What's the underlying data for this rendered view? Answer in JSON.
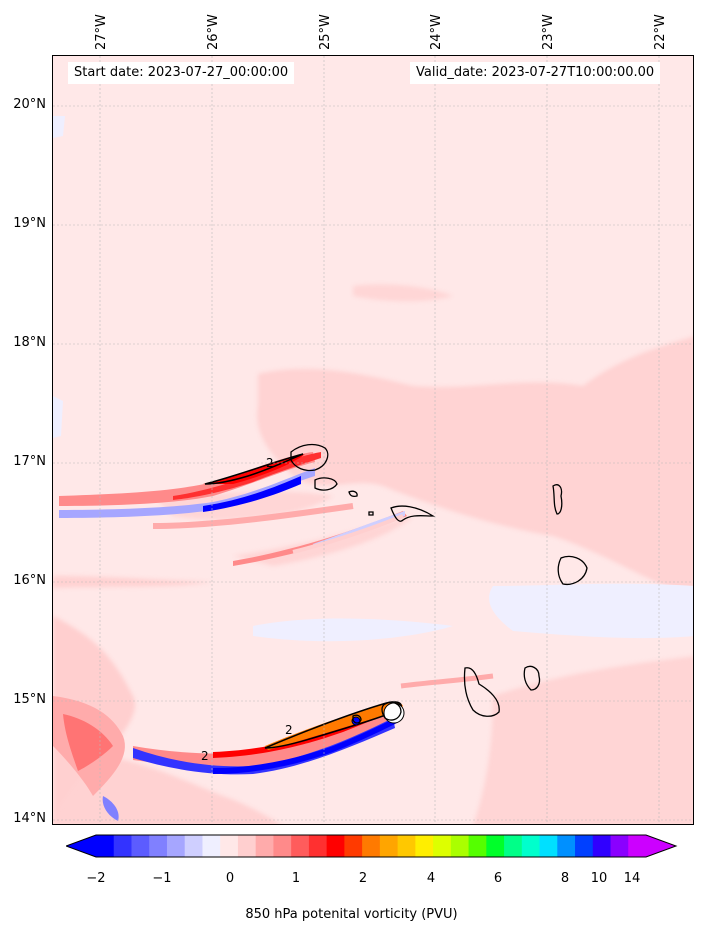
{
  "header": {
    "start_date": "Start date: 2023-07-27_00:00:00",
    "valid_date": "Valid_date: 2023-07-27T10:00:00.00"
  },
  "axes": {
    "lon_labels": [
      "27°W",
      "26°W",
      "25°W",
      "24°W",
      "23°W",
      "22°W"
    ],
    "lat_labels": [
      "20°N",
      "19°N",
      "18°N",
      "17°N",
      "16°N",
      "15°N",
      "14°N"
    ],
    "lon_values": [
      -27,
      -26,
      -25,
      -24,
      -23,
      -22
    ],
    "lat_values": [
      20,
      19,
      18,
      17,
      16,
      15,
      14
    ]
  },
  "map": {
    "projection": "lat-lon",
    "extent_lon": [
      -27.4,
      -21.7
    ],
    "extent_lat": [
      13.95,
      20.4
    ],
    "background_color": "#ffe8e8",
    "gridlines": true,
    "contour_level_label": "2",
    "contour_labels": [
      "2",
      "2",
      "2"
    ]
  },
  "colorbar": {
    "label": "850 hPa potenital vorticity (PVU)",
    "tick_labels": [
      "−2",
      "−1",
      "0",
      "1",
      "2",
      "4",
      "6",
      "8",
      "10",
      "14"
    ],
    "colors": [
      "#0000ff",
      "#3333ff",
      "#5c5cff",
      "#8080ff",
      "#a6a6ff",
      "#cfcfff",
      "#efefff",
      "#ffe8e8",
      "#ffcfcf",
      "#ffabab",
      "#ff8a8a",
      "#ff5c5c",
      "#ff3030",
      "#ff0000",
      "#ff3a00",
      "#ff7a00",
      "#ffa500",
      "#ffc800",
      "#ffee00",
      "#ddff00",
      "#aaff00",
      "#55ff00",
      "#00ff2a",
      "#00ff88",
      "#00ffcc",
      "#00e0ff",
      "#0090ff",
      "#0040ff",
      "#3000ff",
      "#8a00ff",
      "#cc00ff"
    ],
    "extend": "both"
  }
}
